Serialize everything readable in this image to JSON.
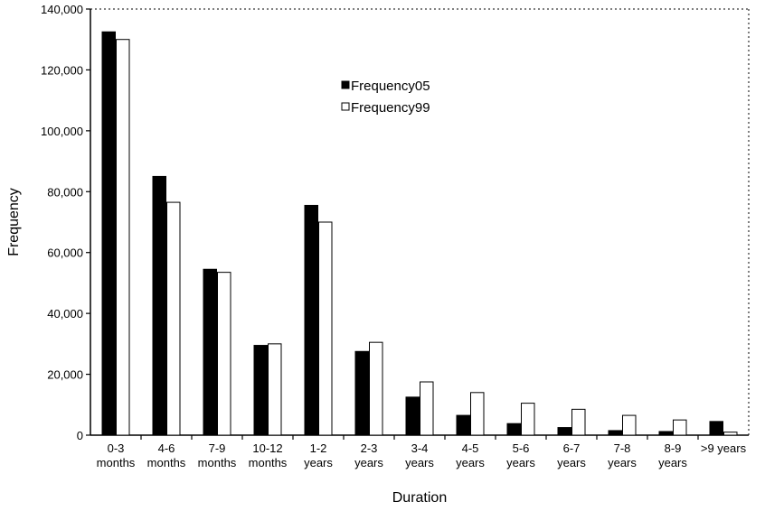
{
  "chart_data": {
    "type": "bar",
    "title": "",
    "xlabel": "Duration",
    "ylabel": "Frequency",
    "ylim": [
      0,
      140000
    ],
    "yticks": [
      "0",
      "20,000",
      "40,000",
      "60,000",
      "80,000",
      "100,000",
      "120,000",
      "140,000"
    ],
    "categories": [
      [
        "0-3",
        "months"
      ],
      [
        "4-6",
        "months"
      ],
      [
        "7-9",
        "months"
      ],
      [
        "10-12",
        "months"
      ],
      [
        "1-2",
        "years"
      ],
      [
        "2-3",
        "years"
      ],
      [
        "3-4",
        "years"
      ],
      [
        "4-5",
        "years"
      ],
      [
        "5-6",
        "years"
      ],
      [
        "6-7",
        "years"
      ],
      [
        "7-8",
        "years"
      ],
      [
        "8-9",
        "years"
      ],
      [
        ">9 years"
      ]
    ],
    "series": [
      {
        "name": "Frequency05",
        "color": "#000000",
        "values": [
          132500,
          85000,
          54500,
          29500,
          75500,
          27500,
          12500,
          6500,
          3800,
          2500,
          1500,
          1200,
          4500
        ]
      },
      {
        "name": "Frequency99",
        "color": "#ffffff",
        "values": [
          130000,
          76500,
          53500,
          30000,
          70000,
          30500,
          17500,
          14000,
          10500,
          8500,
          6500,
          5000,
          1000
        ]
      }
    ],
    "legend": "upper-center",
    "grid": false
  }
}
